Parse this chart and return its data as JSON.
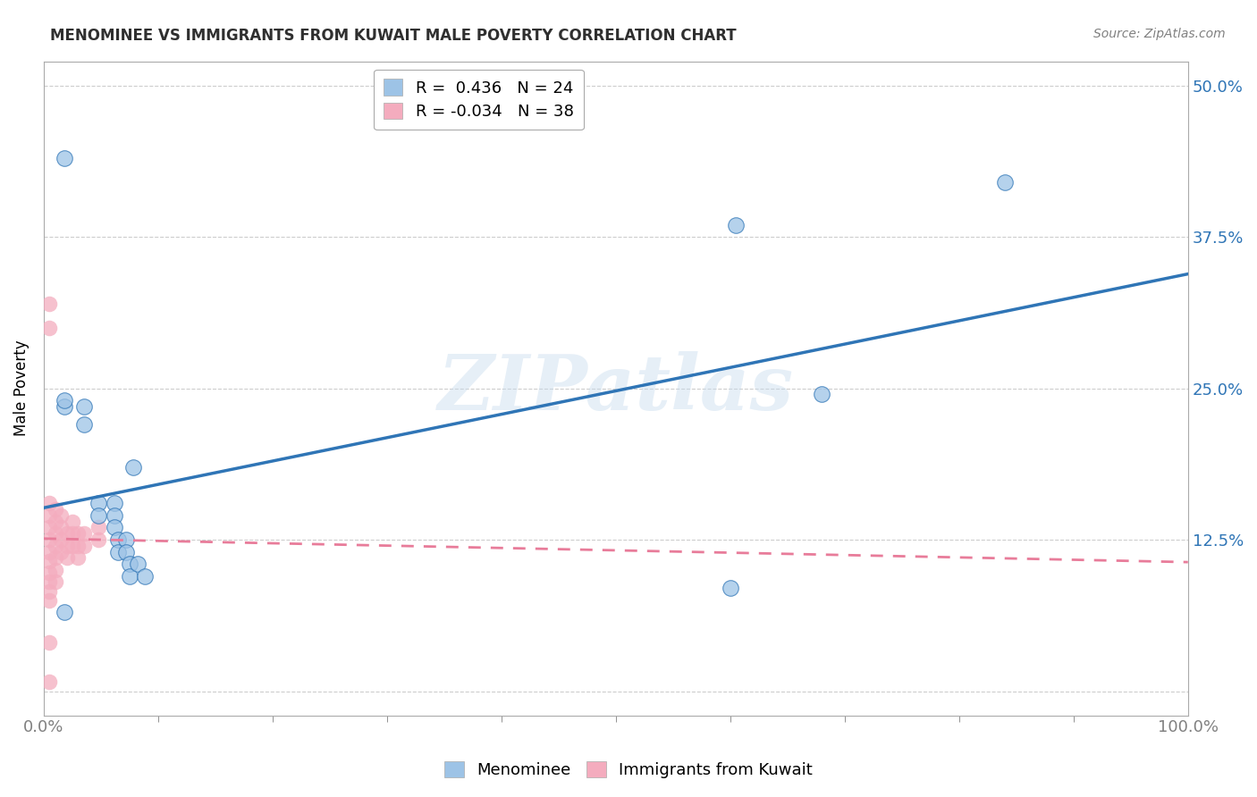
{
  "title": "MENOMINEE VS IMMIGRANTS FROM KUWAIT MALE POVERTY CORRELATION CHART",
  "source": "Source: ZipAtlas.com",
  "ylabel": "Male Poverty",
  "ytick_values": [
    0.0,
    0.125,
    0.25,
    0.375,
    0.5
  ],
  "ytick_labels": [
    "",
    "12.5%",
    "25.0%",
    "37.5%",
    "50.0%"
  ],
  "xlim": [
    0,
    1.0
  ],
  "ylim": [
    -0.02,
    0.52
  ],
  "menominee_r": 0.436,
  "menominee_n": 24,
  "kuwait_r": -0.034,
  "kuwait_n": 38,
  "menominee_color": "#9DC3E6",
  "kuwait_color": "#F4ACBE",
  "menominee_line_color": "#2F75B6",
  "kuwait_line_color": "#E87C9A",
  "background_color": "#FFFFFF",
  "grid_color": "#C8C8C8",
  "watermark_text": "ZIPatlas",
  "menominee_x": [
    0.018,
    0.018,
    0.035,
    0.035,
    0.048,
    0.048,
    0.062,
    0.062,
    0.062,
    0.065,
    0.065,
    0.072,
    0.072,
    0.075,
    0.075,
    0.078,
    0.082,
    0.088,
    0.6,
    0.605,
    0.68,
    0.84,
    0.018,
    0.018
  ],
  "menominee_y": [
    0.44,
    0.235,
    0.235,
    0.22,
    0.155,
    0.145,
    0.155,
    0.145,
    0.135,
    0.125,
    0.115,
    0.125,
    0.115,
    0.105,
    0.095,
    0.185,
    0.105,
    0.095,
    0.085,
    0.385,
    0.245,
    0.42,
    0.24,
    0.065
  ],
  "kuwait_x": [
    0.005,
    0.005,
    0.005,
    0.005,
    0.005,
    0.005,
    0.005,
    0.005,
    0.005,
    0.005,
    0.005,
    0.01,
    0.01,
    0.01,
    0.01,
    0.01,
    0.01,
    0.01,
    0.015,
    0.015,
    0.015,
    0.015,
    0.02,
    0.02,
    0.02,
    0.025,
    0.025,
    0.025,
    0.03,
    0.03,
    0.03,
    0.035,
    0.035,
    0.048,
    0.048,
    0.005,
    0.005,
    0.005
  ],
  "kuwait_y": [
    0.32,
    0.155,
    0.145,
    0.135,
    0.125,
    0.115,
    0.107,
    0.098,
    0.09,
    0.082,
    0.075,
    0.15,
    0.14,
    0.13,
    0.12,
    0.11,
    0.1,
    0.09,
    0.145,
    0.135,
    0.125,
    0.115,
    0.13,
    0.12,
    0.11,
    0.14,
    0.13,
    0.12,
    0.13,
    0.12,
    0.11,
    0.13,
    0.12,
    0.135,
    0.125,
    0.3,
    0.04,
    0.008
  ]
}
